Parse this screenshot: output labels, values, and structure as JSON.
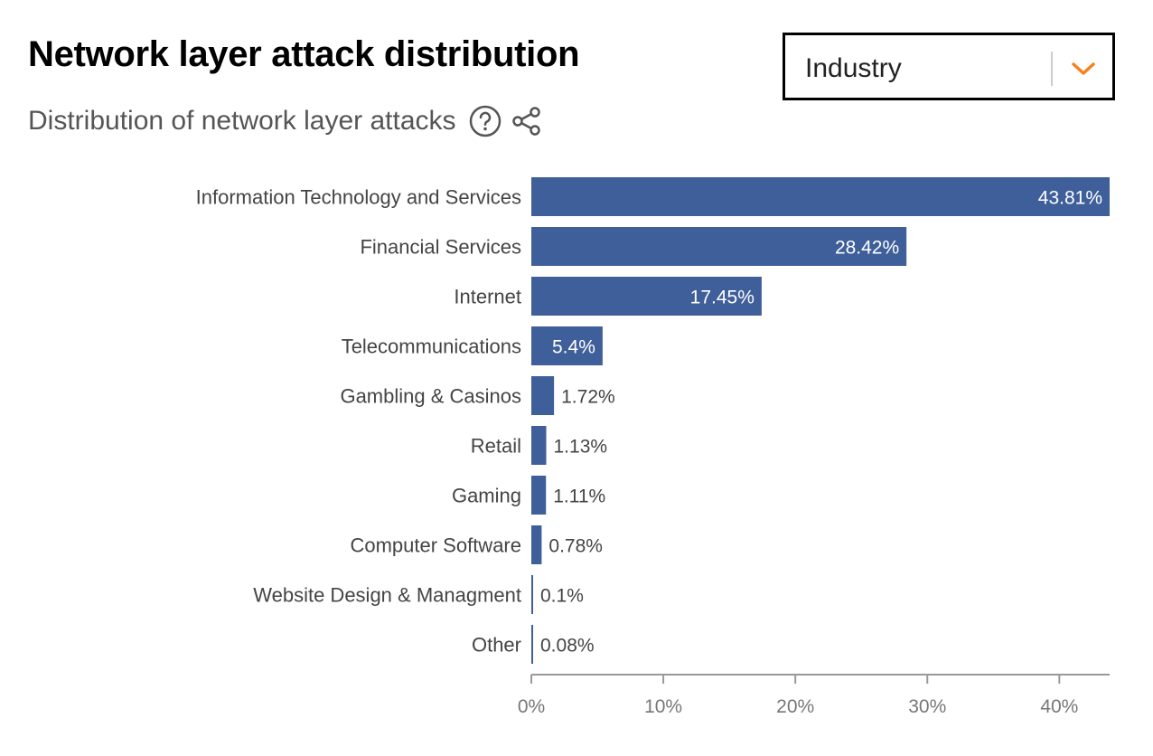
{
  "header": {
    "title": "Network layer attack distribution",
    "subtitle": "Distribution of network layer attacks"
  },
  "icons": {
    "help": "help-circle-icon",
    "share": "share-icon",
    "dropdown": "chevron-down-icon"
  },
  "dropdown": {
    "selected": "Industry"
  },
  "colors": {
    "bar": "#3f5f9a",
    "accent": "#f6821f",
    "text": "#444444",
    "axis": "#999999"
  },
  "chart_data": {
    "type": "bar",
    "orientation": "horizontal",
    "categories": [
      "Information Technology and Services",
      "Financial Services",
      "Internet",
      "Telecommunications",
      "Gambling & Casinos",
      "Retail",
      "Gaming",
      "Computer Software",
      "Website Design & Managment",
      "Other"
    ],
    "values": [
      43.81,
      28.42,
      17.45,
      5.4,
      1.72,
      1.13,
      1.11,
      0.78,
      0.1,
      0.08
    ],
    "value_labels": [
      "43.81%",
      "28.42%",
      "17.45%",
      "5.4%",
      "1.72%",
      "1.13%",
      "1.11%",
      "0.78%",
      "0.1%",
      "0.08%"
    ],
    "xticks": [
      "0%",
      "10%",
      "20%",
      "30%",
      "40%"
    ],
    "xtick_values": [
      0,
      10,
      20,
      30,
      40
    ],
    "xlim": [
      0,
      43.81
    ],
    "grid": false,
    "legend": "none"
  }
}
